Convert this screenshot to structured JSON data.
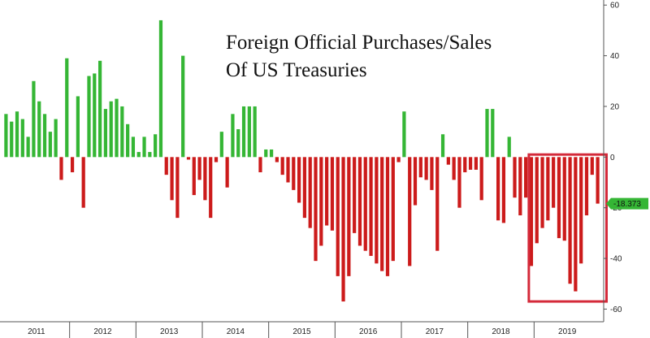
{
  "chart_data": {
    "type": "bar",
    "title_lines": [
      "Foreign Official Purchases/Sales",
      "Of US Treasuries"
    ],
    "ylim": [
      -65,
      62
    ],
    "yticks": [
      60,
      40,
      20,
      0,
      -20,
      -40,
      -60
    ],
    "ytick_labels": [
      "60",
      "40",
      "20",
      "0",
      "-20",
      "-40",
      "-60"
    ],
    "xlabels": [
      "2011",
      "2012",
      "2013",
      "2014",
      "2015",
      "2016",
      "2017",
      "2018",
      "2019"
    ],
    "year_start_index": [
      0,
      12,
      24,
      36,
      48,
      60,
      72,
      84,
      96
    ],
    "grid": false,
    "positive_color": "#35b635",
    "negative_color": "#cc1b1b",
    "last_value_label": "-18.373",
    "last_value": -18.373,
    "values": [
      17,
      14,
      18,
      15,
      8,
      30,
      22,
      17,
      10,
      15,
      -9,
      39,
      -6,
      24,
      -20,
      32,
      33,
      38,
      19,
      22,
      23,
      20,
      13,
      8,
      2,
      8,
      2,
      9,
      54,
      -7,
      -17,
      -24,
      40,
      -1,
      -15,
      -9,
      -17,
      -24,
      -2,
      10,
      -12,
      17,
      11,
      20,
      20,
      20,
      -6,
      3,
      3,
      -2,
      -7,
      -10,
      -13,
      -18,
      -24,
      -28,
      -41,
      -35,
      -27,
      -29,
      -47,
      -57,
      -47,
      -30,
      -35,
      -37,
      -39,
      -42,
      -45,
      -47,
      -41,
      -2,
      18,
      -43,
      -19,
      -8,
      -9,
      -13,
      -37,
      9,
      -3,
      -9,
      -20,
      -6,
      -5,
      -5,
      -17,
      19,
      19,
      -25,
      -26,
      8,
      -16,
      -23,
      -16,
      -43,
      -34,
      -28,
      -25,
      -20,
      -32,
      -33,
      -50,
      -53,
      -42,
      -23,
      -7,
      -18.373
    ],
    "highlight_box": {
      "from_index": 95,
      "to_index": 108,
      "y_top": 1,
      "y_bottom": -57
    }
  }
}
